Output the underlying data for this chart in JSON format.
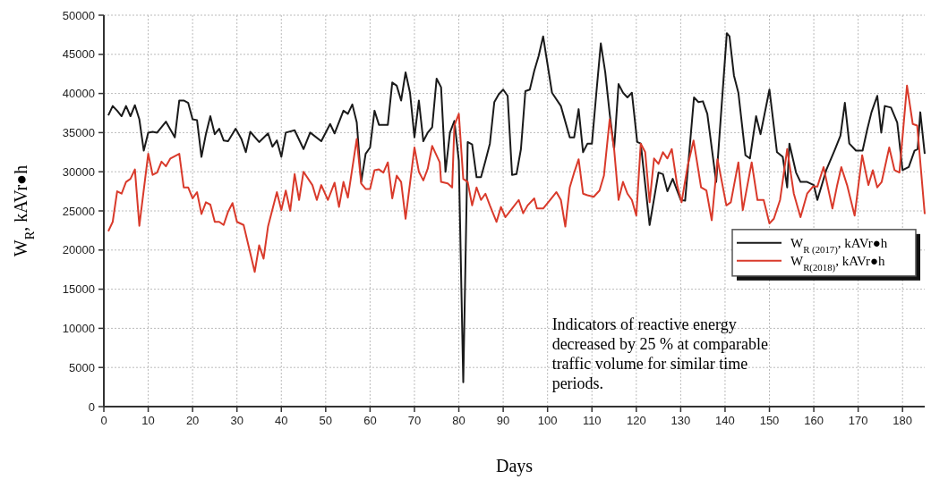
{
  "chart_data": {
    "type": "line",
    "xlabel": "Days",
    "ylabel": "W$_{R}$, kAVr●h",
    "xlim": [
      0,
      185
    ],
    "ylim": [
      0,
      50000
    ],
    "xticks": [
      0,
      10,
      20,
      30,
      40,
      50,
      60,
      70,
      80,
      90,
      100,
      110,
      120,
      130,
      140,
      150,
      160,
      170,
      180
    ],
    "yticks": [
      0,
      5000,
      10000,
      15000,
      20000,
      25000,
      30000,
      35000,
      40000,
      45000,
      50000
    ],
    "grid": true,
    "legend": "right",
    "line_style": "solid",
    "annotations": [
      "Indicators of reactive energy decreased by 25 % at comparable traffic volume for similar time periods."
    ],
    "series": [
      {
        "name": "W$_{R (2017)}$, kAVr●h",
        "color": "#1a1a1a",
        "x": [
          1,
          2,
          3,
          4,
          5,
          6,
          7,
          8,
          9,
          10,
          11,
          12,
          14,
          16,
          17,
          18,
          19,
          20,
          21,
          22,
          23,
          24,
          25,
          26,
          27,
          28,
          29.7,
          31,
          32,
          33,
          35,
          37,
          38,
          39,
          40,
          41,
          43,
          45,
          46.5,
          49,
          51,
          52,
          54,
          55,
          56,
          57,
          58,
          59,
          60,
          61,
          62,
          64,
          65,
          66,
          67,
          68,
          69,
          70,
          71,
          72,
          73,
          74,
          75,
          76,
          77,
          78,
          79,
          80,
          81,
          82,
          83,
          84,
          85,
          86,
          87,
          88,
          89,
          90,
          91,
          92,
          93,
          94,
          95,
          96,
          97,
          98,
          99,
          101,
          103,
          105,
          106,
          107,
          108,
          109,
          110,
          111,
          112,
          113,
          114,
          115,
          116,
          117,
          118,
          119,
          120.2,
          121,
          123,
          125,
          126,
          127,
          128.2,
          130,
          131,
          133,
          134,
          135,
          136,
          138,
          140.4,
          141,
          142,
          143,
          144.6,
          145.6,
          147,
          148,
          150,
          151.7,
          153,
          154,
          154.5,
          156,
          157,
          158.5,
          160,
          160.8,
          162.8,
          164.8,
          166,
          167,
          168,
          169.5,
          171,
          172,
          173,
          174.3,
          175.2,
          176,
          177.4,
          178.8,
          180,
          181.4,
          182.7,
          183.4,
          184,
          185
        ],
        "values": [
          37200,
          38400,
          37800,
          37100,
          38400,
          37100,
          38500,
          36700,
          32700,
          35000,
          35100,
          35000,
          36400,
          34400,
          39100,
          39100,
          38800,
          36700,
          36600,
          31900,
          34800,
          37100,
          34800,
          35500,
          34000,
          33900,
          35500,
          34200,
          32500,
          35100,
          33800,
          34900,
          33200,
          34000,
          31900,
          35000,
          35300,
          32900,
          35000,
          33900,
          36100,
          34900,
          37800,
          37400,
          38600,
          36300,
          28700,
          32300,
          33100,
          37800,
          36000,
          36000,
          41400,
          41000,
          39100,
          42700,
          40100,
          34400,
          39100,
          33900,
          35000,
          35700,
          41900,
          40800,
          30000,
          35000,
          36500,
          31400,
          3100,
          33800,
          33500,
          29300,
          29300,
          31400,
          33600,
          38900,
          39900,
          40500,
          39700,
          29600,
          29700,
          32900,
          40300,
          40500,
          42900,
          44800,
          47300,
          40100,
          38400,
          34400,
          34400,
          38000,
          32500,
          33600,
          33600,
          40100,
          46400,
          42700,
          37400,
          32900,
          41200,
          40100,
          39500,
          40100,
          33800,
          33600,
          23200,
          29900,
          29700,
          27500,
          29100,
          26400,
          26300,
          39500,
          38900,
          39000,
          37400,
          28700,
          47700,
          47300,
          42300,
          40100,
          32100,
          31700,
          37100,
          34800,
          40500,
          32500,
          31900,
          28000,
          33600,
          29900,
          28700,
          28700,
          28300,
          26400,
          30200,
          32900,
          34600,
          38800,
          33600,
          32700,
          32700,
          35300,
          37600,
          39700,
          35000,
          38400,
          38200,
          36300,
          30200,
          30600,
          32700,
          32900,
          37600,
          32300
        ]
      },
      {
        "name": "W$_{R(2018)}$, kAVr●h",
        "color": "#d93a2b",
        "x": [
          1,
          2,
          3,
          4,
          5,
          6,
          7,
          8,
          10,
          11,
          12,
          13,
          14,
          15,
          17,
          18,
          19,
          20,
          21,
          22,
          23,
          24,
          25,
          26,
          27,
          28,
          29,
          30,
          31.5,
          34,
          35,
          36,
          37,
          39,
          40,
          41,
          42,
          43,
          44,
          45,
          47,
          48,
          49,
          50.5,
          52,
          53,
          54,
          55,
          57,
          58,
          59,
          60,
          61,
          62,
          63,
          64,
          65,
          66,
          67,
          68,
          70,
          71,
          72,
          73,
          74,
          75.7,
          76,
          77.5,
          78.5,
          79,
          80,
          81,
          82,
          83,
          84,
          85,
          86,
          87,
          88.5,
          89.5,
          90.5,
          92,
          93.5,
          94.5,
          95.5,
          97,
          97.6,
          99,
          100.6,
          102,
          103,
          104,
          105,
          106,
          107,
          108,
          109,
          110.4,
          111.7,
          112.7,
          114,
          115,
          116,
          117,
          118,
          119,
          120,
          121,
          122,
          123,
          124,
          125,
          126,
          127,
          128,
          129.2,
          130.2,
          131.6,
          132.9,
          134.6,
          135.8,
          137,
          138.3,
          140.3,
          141.3,
          143,
          144,
          146,
          147.3,
          148.7,
          150,
          151,
          152.4,
          154,
          155.5,
          157,
          158.5,
          159.8,
          160.8,
          162.2,
          164.2,
          165.2,
          166.2,
          167.5,
          169.2,
          170.9,
          172.3,
          173.3,
          174.3,
          175.3,
          177,
          178.2,
          179.3,
          181,
          182.3,
          183.3,
          185
        ],
        "values": [
          22400,
          23600,
          27500,
          27200,
          28700,
          29100,
          30300,
          23100,
          32300,
          29600,
          29900,
          31300,
          30700,
          31700,
          32300,
          28000,
          28000,
          26600,
          27400,
          24600,
          26100,
          25800,
          23600,
          23600,
          23200,
          24900,
          26000,
          23600,
          23200,
          17200,
          20600,
          18900,
          23000,
          27400,
          25100,
          27600,
          25000,
          29700,
          26400,
          30000,
          28300,
          26400,
          28300,
          26400,
          28600,
          25500,
          28700,
          26700,
          34200,
          28500,
          27800,
          27800,
          30200,
          30300,
          29900,
          31200,
          26600,
          29500,
          28700,
          24000,
          33100,
          30000,
          28900,
          30400,
          33300,
          31200,
          28700,
          28500,
          28000,
          35900,
          37400,
          29100,
          28700,
          25700,
          28000,
          26400,
          27200,
          25700,
          23600,
          25500,
          24200,
          25300,
          26400,
          24700,
          25700,
          26600,
          25300,
          25300,
          26400,
          27400,
          26400,
          23000,
          28000,
          29900,
          31600,
          27200,
          27000,
          26800,
          27600,
          29500,
          36700,
          32900,
          26400,
          28700,
          27200,
          26400,
          24400,
          33600,
          32500,
          26100,
          31700,
          31000,
          32500,
          31700,
          32900,
          28300,
          26100,
          30800,
          34000,
          28000,
          27600,
          23800,
          31600,
          25700,
          26100,
          31200,
          25100,
          31200,
          26400,
          26400,
          23400,
          24000,
          26400,
          32900,
          27200,
          24200,
          27200,
          28100,
          28100,
          30600,
          25300,
          28100,
          30600,
          28300,
          24400,
          32100,
          28300,
          30200,
          28000,
          28700,
          33100,
          30200,
          29900,
          41000,
          36100,
          35900,
          24600
        ]
      }
    ]
  }
}
